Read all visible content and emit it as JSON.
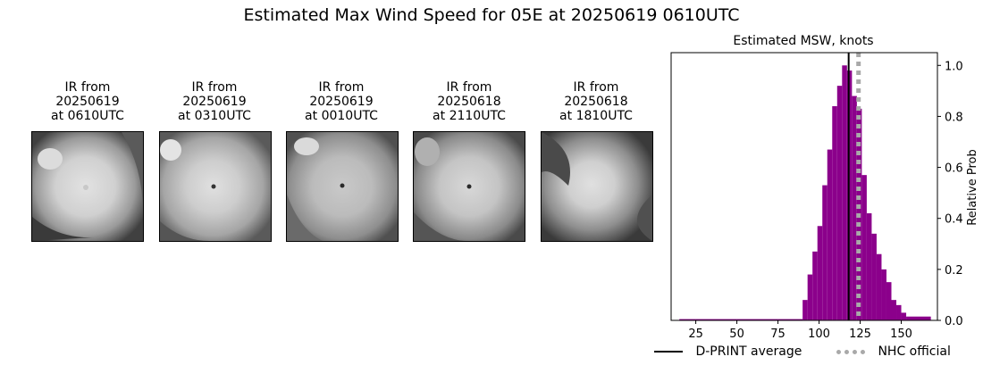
{
  "title": "Estimated Max Wind Speed for 05E at 20250619 0610UTC",
  "ir_panels": [
    {
      "line1": "IR from",
      "line2": "20250619",
      "line3": "at 0610UTC"
    },
    {
      "line1": "IR from",
      "line2": "20250619",
      "line3": "at 0310UTC"
    },
    {
      "line1": "IR from",
      "line2": "20250619",
      "line3": "at 0010UTC"
    },
    {
      "line1": "IR from",
      "line2": "20250618",
      "line3": "at 2110UTC"
    },
    {
      "line1": "IR from",
      "line2": "20250618",
      "line3": "at 1810UTC"
    }
  ],
  "chart_data": {
    "type": "bar",
    "title": "Estimated MSW, knots",
    "xlabel": "",
    "ylabel": "Relative Prob",
    "xlim": [
      10,
      172
    ],
    "ylim": [
      0,
      1.05
    ],
    "xticks": [
      25,
      50,
      75,
      100,
      125,
      150
    ],
    "yticks": [
      "0.0",
      "0.2",
      "0.4",
      "0.6",
      "0.8",
      "1.0"
    ],
    "bar_color": "#8b008b",
    "bins": [
      {
        "x0": 15,
        "x1": 90,
        "value": 0.005
      },
      {
        "x0": 90,
        "x1": 93,
        "value": 0.08
      },
      {
        "x0": 93,
        "x1": 96,
        "value": 0.18
      },
      {
        "x0": 96,
        "x1": 99,
        "value": 0.27
      },
      {
        "x0": 99,
        "x1": 102,
        "value": 0.37
      },
      {
        "x0": 102,
        "x1": 105,
        "value": 0.53
      },
      {
        "x0": 105,
        "x1": 108,
        "value": 0.67
      },
      {
        "x0": 108,
        "x1": 111,
        "value": 0.84
      },
      {
        "x0": 111,
        "x1": 114,
        "value": 0.92
      },
      {
        "x0": 114,
        "x1": 117,
        "value": 1.0
      },
      {
        "x0": 117,
        "x1": 120,
        "value": 0.98
      },
      {
        "x0": 120,
        "x1": 123,
        "value": 0.88
      },
      {
        "x0": 123,
        "x1": 126,
        "value": 0.83
      },
      {
        "x0": 126,
        "x1": 129,
        "value": 0.57
      },
      {
        "x0": 129,
        "x1": 132,
        "value": 0.42
      },
      {
        "x0": 132,
        "x1": 135,
        "value": 0.34
      },
      {
        "x0": 135,
        "x1": 138,
        "value": 0.26
      },
      {
        "x0": 138,
        "x1": 141,
        "value": 0.2
      },
      {
        "x0": 141,
        "x1": 144,
        "value": 0.15
      },
      {
        "x0": 144,
        "x1": 147,
        "value": 0.08
      },
      {
        "x0": 147,
        "x1": 150,
        "value": 0.06
      },
      {
        "x0": 150,
        "x1": 153,
        "value": 0.03
      },
      {
        "x0": 153,
        "x1": 168,
        "value": 0.015
      }
    ],
    "lines": [
      {
        "name": "D-PRINT average",
        "x": 118,
        "color": "#000000",
        "style": "solid"
      },
      {
        "name": "NHC official",
        "x": 124,
        "color": "#a9a9a9",
        "style": "dotted"
      }
    ],
    "legend_placement": "bottom"
  }
}
